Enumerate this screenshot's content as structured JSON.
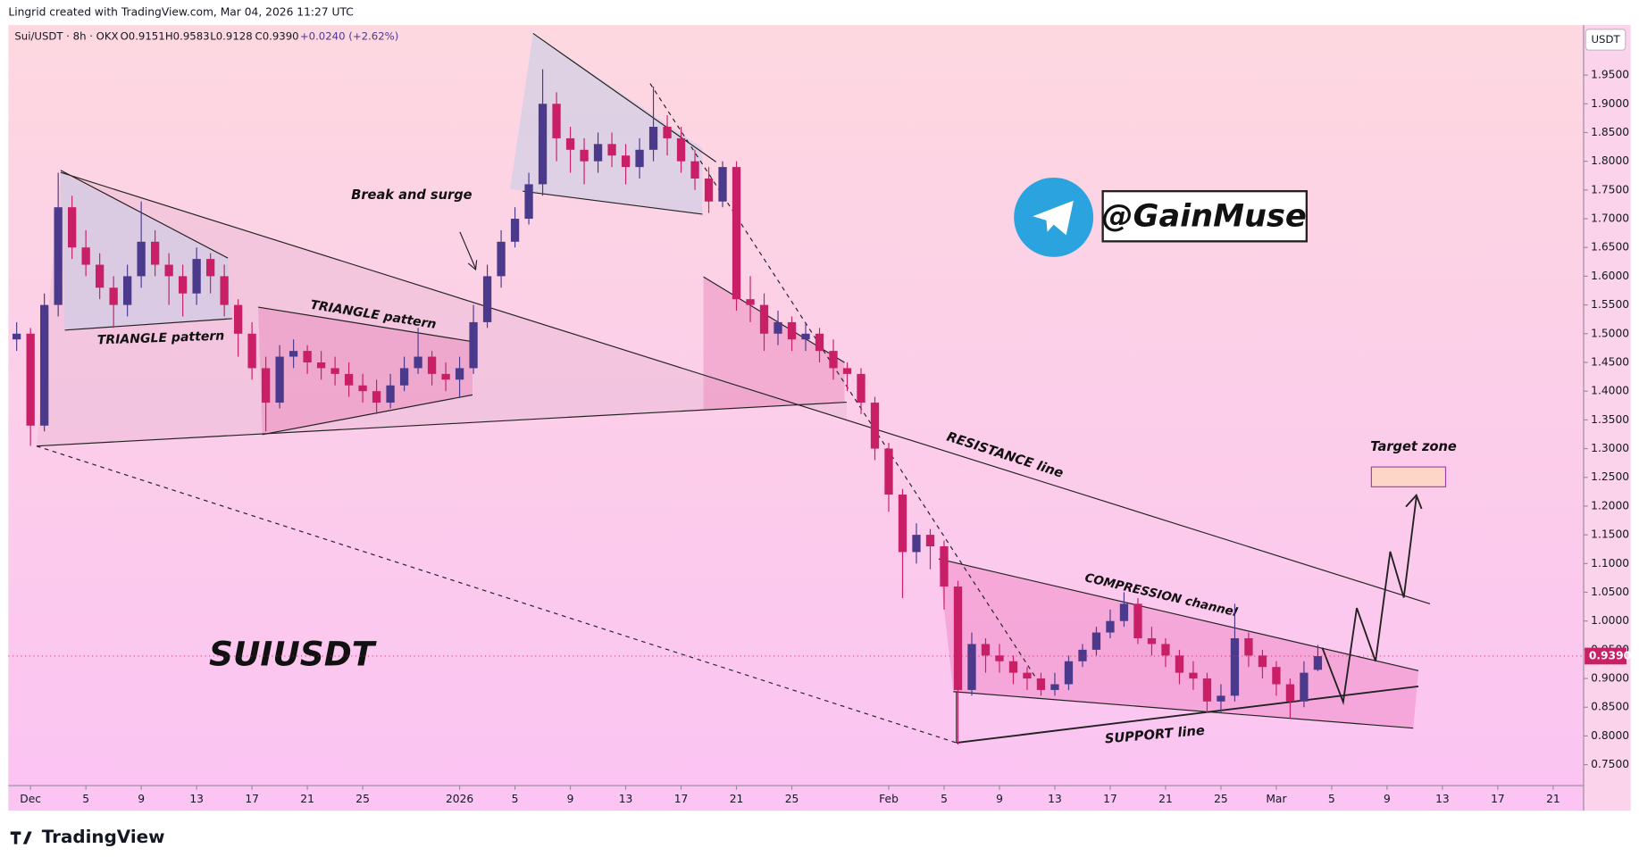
{
  "header": {
    "credit": "Lingrid created with TradingView.com, Mar 04, 2026 11:27 UTC",
    "symbol": "Sui/USDT · 8h · OKX",
    "ohlc": [
      "O0.9151",
      "H0.9583",
      "L0.9128",
      "C0.9390",
      "+0.0240 (+2.62%)"
    ]
  },
  "chart_data": {
    "type": "candlestick",
    "currency_label": "USDT",
    "up_color": "#4b3a8c",
    "down_color": "#c81f66",
    "xlim": [
      -1.6,
      112.2
    ],
    "ylim": [
      0.7136,
      2.037
    ],
    "grid": false,
    "xticks": [
      {
        "value": 0,
        "label": "Dec"
      },
      {
        "value": 4,
        "label": "5"
      },
      {
        "value": 8,
        "label": "9"
      },
      {
        "value": 12,
        "label": "13"
      },
      {
        "value": 16,
        "label": "17"
      },
      {
        "value": 20,
        "label": "21"
      },
      {
        "value": 24,
        "label": "25"
      },
      {
        "value": 31,
        "label": "2026"
      },
      {
        "value": 35,
        "label": "5"
      },
      {
        "value": 39,
        "label": "9"
      },
      {
        "value": 43,
        "label": "13"
      },
      {
        "value": 47,
        "label": "17"
      },
      {
        "value": 51,
        "label": "21"
      },
      {
        "value": 55,
        "label": "25"
      },
      {
        "value": 62,
        "label": "Feb"
      },
      {
        "value": 66,
        "label": "5"
      },
      {
        "value": 70,
        "label": "9"
      },
      {
        "value": 74,
        "label": "13"
      },
      {
        "value": 78,
        "label": "17"
      },
      {
        "value": 82,
        "label": "21"
      },
      {
        "value": 86,
        "label": "25"
      },
      {
        "value": 90,
        "label": "Mar"
      },
      {
        "value": 94,
        "label": "5"
      },
      {
        "value": 98,
        "label": "9"
      },
      {
        "value": 102,
        "label": "13"
      },
      {
        "value": 106,
        "label": "17"
      },
      {
        "value": 110,
        "label": "21"
      }
    ],
    "yticks": [
      {
        "value": 0.75,
        "label": "0.7500"
      },
      {
        "value": 0.8,
        "label": "0.8000"
      },
      {
        "value": 0.85,
        "label": "0.8500"
      },
      {
        "value": 0.9,
        "label": "0.9000"
      },
      {
        "value": 0.95,
        "label": "0.9500"
      },
      {
        "value": 1.0,
        "label": "1.0000"
      },
      {
        "value": 1.05,
        "label": "1.0500"
      },
      {
        "value": 1.1,
        "label": "1.1000"
      },
      {
        "value": 1.15,
        "label": "1.1500"
      },
      {
        "value": 1.2,
        "label": "1.2000"
      },
      {
        "value": 1.25,
        "label": "1.2500"
      },
      {
        "value": 1.3,
        "label": "1.3000"
      },
      {
        "value": 1.35,
        "label": "1.3500"
      },
      {
        "value": 1.4,
        "label": "1.4000"
      },
      {
        "value": 1.45,
        "label": "1.4500"
      },
      {
        "value": 1.5,
        "label": "1.5000"
      },
      {
        "value": 1.55,
        "label": "1.5500"
      },
      {
        "value": 1.6,
        "label": "1.6000"
      },
      {
        "value": 1.65,
        "label": "1.6500"
      },
      {
        "value": 1.7,
        "label": "1.7000"
      },
      {
        "value": 1.75,
        "label": "1.7500"
      },
      {
        "value": 1.8,
        "label": "1.8000"
      },
      {
        "value": 1.85,
        "label": "1.8500"
      },
      {
        "value": 1.9,
        "label": "1.9000"
      },
      {
        "value": 1.95,
        "label": "1.9500"
      }
    ],
    "last_price": {
      "value": 0.939,
      "label": "0.9390"
    },
    "x": [
      -1,
      0,
      1,
      2,
      3,
      4,
      5,
      6,
      7,
      8,
      9,
      10,
      11,
      12,
      13,
      14,
      15,
      16,
      17,
      18,
      19,
      20,
      21,
      22,
      23,
      24,
      25,
      26,
      27,
      28,
      29,
      30,
      31,
      32,
      33,
      34,
      35,
      36,
      37,
      38,
      39,
      40,
      41,
      42,
      43,
      44,
      45,
      46,
      47,
      48,
      49,
      50,
      51,
      52,
      53,
      54,
      55,
      56,
      57,
      58,
      59,
      60,
      61,
      62,
      63,
      64,
      65,
      66,
      67,
      68,
      69,
      70,
      71,
      72,
      73,
      74,
      75,
      76,
      77,
      78,
      79,
      80,
      81,
      82,
      83,
      84,
      85,
      86,
      87,
      88,
      89,
      90,
      91,
      92,
      93
    ],
    "open": [
      1.49,
      1.5,
      1.34,
      1.55,
      1.72,
      1.65,
      1.62,
      1.58,
      1.55,
      1.6,
      1.66,
      1.62,
      1.6,
      1.57,
      1.63,
      1.6,
      1.55,
      1.5,
      1.44,
      1.38,
      1.46,
      1.47,
      1.45,
      1.44,
      1.43,
      1.41,
      1.4,
      1.38,
      1.41,
      1.44,
      1.46,
      1.43,
      1.42,
      1.44,
      1.52,
      1.6,
      1.66,
      1.7,
      1.76,
      1.9,
      1.84,
      1.82,
      1.8,
      1.83,
      1.81,
      1.79,
      1.82,
      1.86,
      1.84,
      1.8,
      1.77,
      1.73,
      1.79,
      1.56,
      1.55,
      1.5,
      1.52,
      1.49,
      1.5,
      1.47,
      1.44,
      1.43,
      1.38,
      1.3,
      1.22,
      1.12,
      1.15,
      1.13,
      1.06,
      0.88,
      0.96,
      0.94,
      0.93,
      0.91,
      0.9,
      0.88,
      0.89,
      0.93,
      0.95,
      0.98,
      1.0,
      1.03,
      0.97,
      0.96,
      0.94,
      0.91,
      0.9,
      0.86,
      0.87,
      0.97,
      0.94,
      0.92,
      0.89,
      0.86,
      0.9151
    ],
    "high": [
      1.52,
      1.51,
      1.57,
      1.78,
      1.74,
      1.68,
      1.64,
      1.6,
      1.62,
      1.73,
      1.68,
      1.64,
      1.62,
      1.65,
      1.64,
      1.62,
      1.56,
      1.52,
      1.46,
      1.48,
      1.49,
      1.48,
      1.47,
      1.46,
      1.45,
      1.43,
      1.42,
      1.43,
      1.46,
      1.51,
      1.47,
      1.45,
      1.46,
      1.55,
      1.62,
      1.68,
      1.72,
      1.78,
      1.96,
      1.92,
      1.86,
      1.84,
      1.85,
      1.85,
      1.83,
      1.84,
      1.93,
      1.88,
      1.86,
      1.82,
      1.79,
      1.8,
      1.8,
      1.6,
      1.57,
      1.54,
      1.53,
      1.52,
      1.51,
      1.49,
      1.45,
      1.44,
      1.39,
      1.31,
      1.23,
      1.17,
      1.16,
      1.14,
      1.07,
      0.98,
      0.97,
      0.96,
      0.94,
      0.92,
      0.91,
      0.91,
      0.94,
      0.96,
      0.99,
      1.02,
      1.05,
      1.04,
      0.99,
      0.97,
      0.95,
      0.93,
      0.91,
      0.89,
      1.03,
      0.98,
      0.95,
      0.93,
      0.9,
      0.93,
      0.9583
    ],
    "low": [
      1.47,
      1.305,
      1.33,
      1.53,
      1.63,
      1.6,
      1.56,
      1.51,
      1.53,
      1.58,
      1.6,
      1.55,
      1.53,
      1.55,
      1.57,
      1.53,
      1.46,
      1.42,
      1.33,
      1.37,
      1.44,
      1.43,
      1.42,
      1.41,
      1.39,
      1.38,
      1.36,
      1.37,
      1.4,
      1.43,
      1.41,
      1.4,
      1.39,
      1.43,
      1.51,
      1.58,
      1.65,
      1.69,
      1.74,
      1.8,
      1.78,
      1.76,
      1.78,
      1.79,
      1.76,
      1.77,
      1.8,
      1.81,
      1.78,
      1.75,
      1.71,
      1.72,
      1.54,
      1.52,
      1.47,
      1.48,
      1.47,
      1.47,
      1.45,
      1.42,
      1.4,
      1.36,
      1.28,
      1.19,
      1.04,
      1.1,
      1.09,
      1.02,
      0.785,
      0.87,
      0.91,
      0.91,
      0.89,
      0.88,
      0.87,
      0.87,
      0.88,
      0.92,
      0.94,
      0.97,
      0.99,
      0.96,
      0.94,
      0.92,
      0.89,
      0.88,
      0.84,
      0.84,
      0.86,
      0.92,
      0.9,
      0.87,
      0.83,
      0.85,
      0.9128
    ],
    "close": [
      1.5,
      1.34,
      1.55,
      1.72,
      1.65,
      1.62,
      1.58,
      1.55,
      1.6,
      1.66,
      1.62,
      1.6,
      1.57,
      1.63,
      1.6,
      1.55,
      1.5,
      1.44,
      1.38,
      1.46,
      1.47,
      1.45,
      1.44,
      1.43,
      1.41,
      1.4,
      1.38,
      1.41,
      1.44,
      1.46,
      1.43,
      1.42,
      1.44,
      1.52,
      1.6,
      1.66,
      1.7,
      1.76,
      1.9,
      1.84,
      1.82,
      1.8,
      1.83,
      1.81,
      1.79,
      1.82,
      1.86,
      1.84,
      1.8,
      1.77,
      1.73,
      1.79,
      1.56,
      1.55,
      1.5,
      1.52,
      1.49,
      1.5,
      1.47,
      1.44,
      1.43,
      1.38,
      1.3,
      1.22,
      1.12,
      1.15,
      1.13,
      1.06,
      0.88,
      0.96,
      0.94,
      0.93,
      0.91,
      0.9,
      0.88,
      0.89,
      0.93,
      0.95,
      0.98,
      1.0,
      1.03,
      0.97,
      0.96,
      0.94,
      0.91,
      0.9,
      0.86,
      0.87,
      0.97,
      0.94,
      0.92,
      0.89,
      0.86,
      0.91,
      0.939
    ]
  },
  "annotations": {
    "triangle_left": "TRIANGLE pattern",
    "triangle_mid": "TRIANGLE pattern",
    "break": "Break and surge",
    "resistance": "RESISTANCE line",
    "compression": "COMPRESSION channel",
    "support": "SUPPORT line",
    "target": "Target zone",
    "ticker": "SUIUSDT",
    "handle": "@GainMuse"
  },
  "branding": {
    "logo": "TradingView"
  }
}
